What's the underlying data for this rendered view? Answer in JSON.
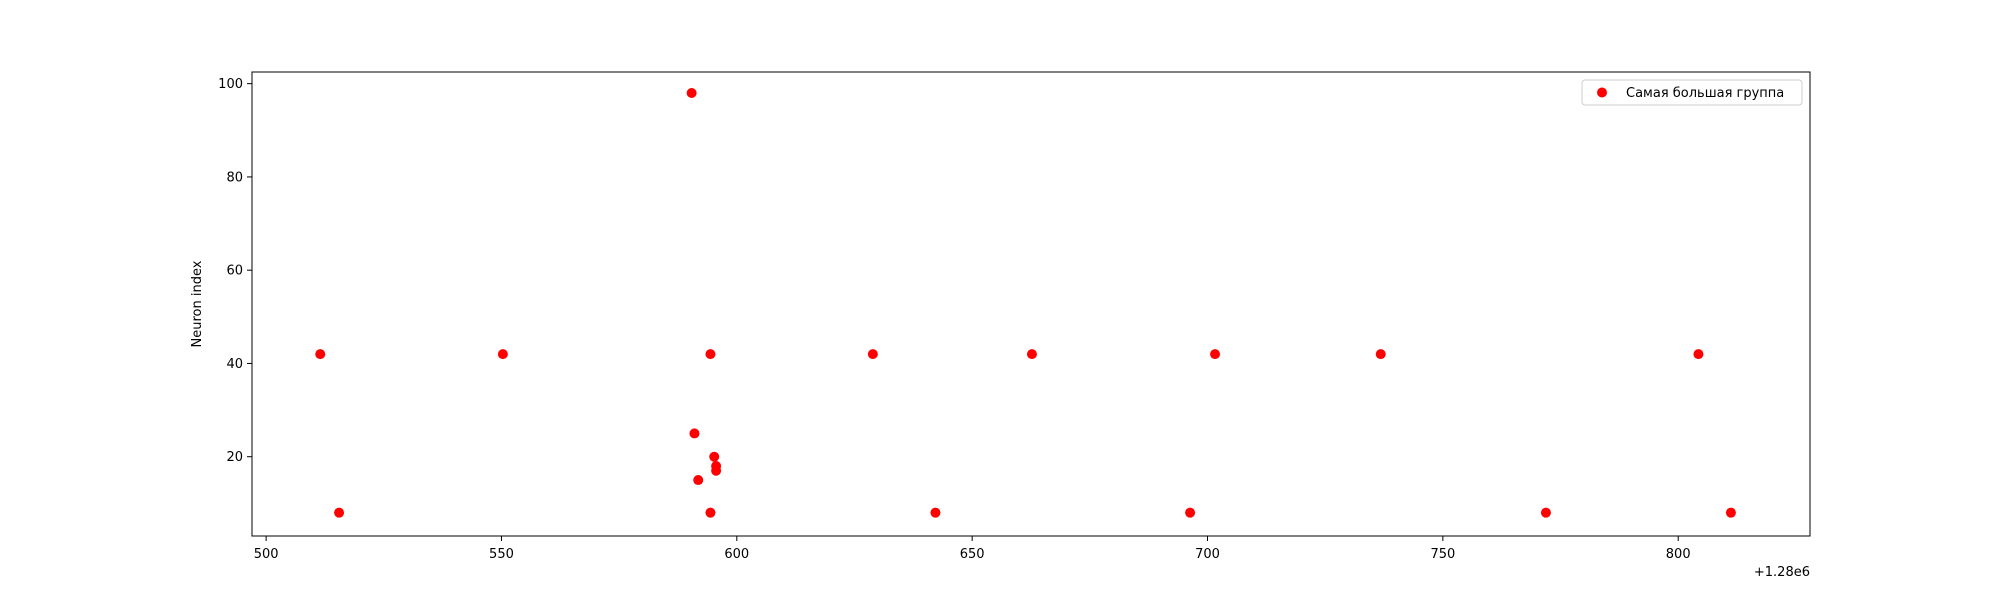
{
  "chart_data": {
    "type": "scatter",
    "title": "",
    "xlabel": "",
    "ylabel": "Neuron index",
    "x_offset_text": "+1.28e6",
    "xlim": [
      497,
      828
    ],
    "ylim": [
      3,
      102.5
    ],
    "x_ticks": [
      500,
      550,
      600,
      650,
      700,
      750,
      800
    ],
    "x_tick_labels": [
      "500",
      "550",
      "600",
      "650",
      "700",
      "750",
      "800"
    ],
    "y_ticks": [
      20,
      40,
      60,
      80,
      100
    ],
    "y_tick_labels": [
      "20",
      "40",
      "60",
      "80",
      "100"
    ],
    "grid": false,
    "legend_position": "top-right",
    "series": [
      {
        "name": "Самая большая группа",
        "color": "#ff0000",
        "marker": "circle",
        "points": [
          {
            "x": 511.5,
            "y": 42
          },
          {
            "x": 515.5,
            "y": 8
          },
          {
            "x": 550.3,
            "y": 42
          },
          {
            "x": 590.4,
            "y": 98
          },
          {
            "x": 591.0,
            "y": 25
          },
          {
            "x": 591.8,
            "y": 15
          },
          {
            "x": 594.4,
            "y": 42
          },
          {
            "x": 594.4,
            "y": 8
          },
          {
            "x": 595.2,
            "y": 20
          },
          {
            "x": 595.6,
            "y": 18
          },
          {
            "x": 595.6,
            "y": 17
          },
          {
            "x": 628.9,
            "y": 42
          },
          {
            "x": 642.2,
            "y": 8
          },
          {
            "x": 662.7,
            "y": 42
          },
          {
            "x": 696.3,
            "y": 8
          },
          {
            "x": 701.6,
            "y": 42
          },
          {
            "x": 736.8,
            "y": 42
          },
          {
            "x": 771.9,
            "y": 8
          },
          {
            "x": 804.3,
            "y": 42
          },
          {
            "x": 811.2,
            "y": 8
          }
        ]
      }
    ]
  }
}
